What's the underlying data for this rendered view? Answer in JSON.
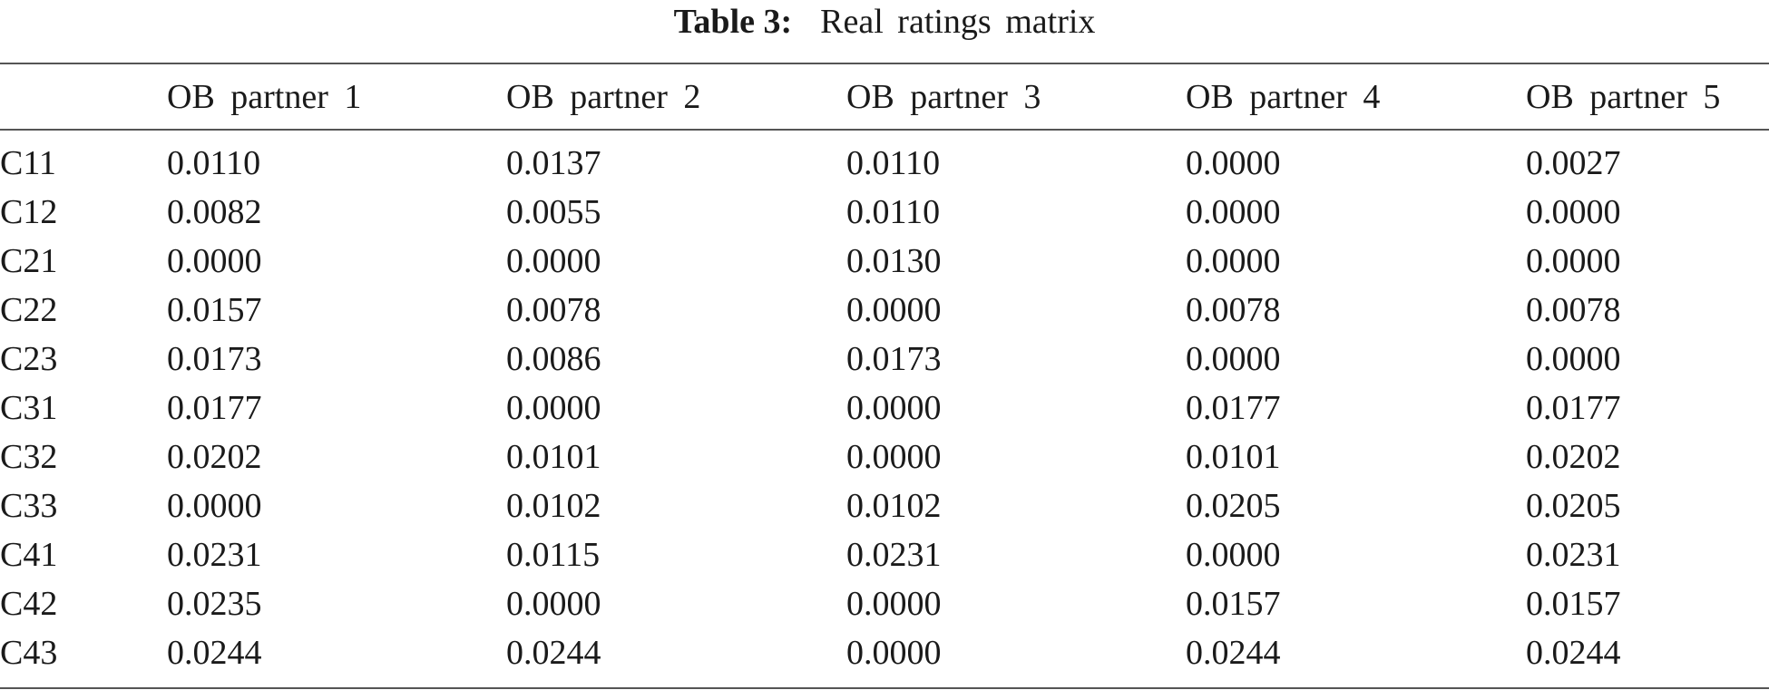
{
  "caption": {
    "label": "Table 3:",
    "title": "Real ratings matrix"
  },
  "table": {
    "header": [
      "OB partner 1",
      "OB partner 2",
      "OB partner 3",
      "OB partner 4",
      "OB partner 5"
    ],
    "rows": [
      [
        "C11",
        "0.0110",
        "0.0137",
        "0.0110",
        "0.0000",
        "0.0027"
      ],
      [
        "C12",
        "0.0082",
        "0.0055",
        "0.0110",
        "0.0000",
        "0.0000"
      ],
      [
        "C21",
        "0.0000",
        "0.0000",
        "0.0130",
        "0.0000",
        "0.0000"
      ],
      [
        "C22",
        "0.0157",
        "0.0078",
        "0.0000",
        "0.0078",
        "0.0078"
      ],
      [
        "C23",
        "0.0173",
        "0.0086",
        "0.0173",
        "0.0000",
        "0.0000"
      ],
      [
        "C31",
        "0.0177",
        "0.0000",
        "0.0000",
        "0.0177",
        "0.0177"
      ],
      [
        "C32",
        "0.0202",
        "0.0101",
        "0.0000",
        "0.0101",
        "0.0202"
      ],
      [
        "C33",
        "0.0000",
        "0.0102",
        "0.0102",
        "0.0205",
        "0.0205"
      ],
      [
        "C41",
        "0.0231",
        "0.0115",
        "0.0231",
        "0.0000",
        "0.0231"
      ],
      [
        "C42",
        "0.0235",
        "0.0000",
        "0.0000",
        "0.0157",
        "0.0157"
      ],
      [
        "C43",
        "0.0244",
        "0.0244",
        "0.0000",
        "0.0244",
        "0.0244"
      ]
    ]
  }
}
